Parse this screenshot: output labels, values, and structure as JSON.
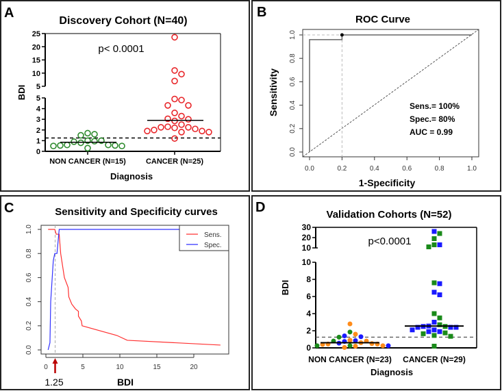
{
  "panels": {
    "A": {
      "letter": "A",
      "title": "Discovery Cohort (N=40)",
      "pvalue": "p< 0.0001",
      "ylabel": "BDI",
      "xlabel": "Diagnosis"
    },
    "B": {
      "letter": "B",
      "title": "ROC Curve",
      "ylabel": "Sensitivity",
      "xlabel": "1-Specificity",
      "stats": [
        "Sens.= 100%",
        "Spec.= 80%",
        "AUC  = 0.99"
      ]
    },
    "C": {
      "letter": "C",
      "title": "Sensitivity and Specificity curves",
      "xlabel": "BDI",
      "cutoff_label": "1.25"
    },
    "D": {
      "letter": "D",
      "title": "Validation Cohorts (N=52)",
      "pvalue": "p<0.0001",
      "ylabel": "BDI",
      "xlabel": "Diagnosis"
    }
  },
  "chart_data": [
    {
      "type": "scatter",
      "title": "Discovery Cohort (N=40)",
      "xlabel": "Diagnosis",
      "ylabel": "BDI",
      "categories": [
        "NON CANCER (N=15)",
        "CANCER (N=25)"
      ],
      "y_axis_broken": true,
      "yticks_lower": [
        0,
        1,
        2,
        3,
        4,
        5
      ],
      "yticks_upper": [
        5,
        10,
        15,
        20,
        25
      ],
      "cutoff": 1.25,
      "series": [
        {
          "category": "NON CANCER (N=15)",
          "color": "#2e8b2e",
          "marker": "open-circle",
          "median": 0.85,
          "values": [
            1.6,
            1.5,
            1.7,
            0.9,
            0.6,
            0.55,
            0.5,
            0.3,
            0.5,
            0.55,
            0.6,
            0.8,
            0.95,
            1.0,
            1.0
          ]
        },
        {
          "category": "CANCER (N=25)",
          "color": "#e8262a",
          "marker": "open-circle",
          "median": 2.9,
          "values": [
            23.6,
            11,
            9.6,
            7,
            4.8,
            4.9,
            4.3,
            4.3,
            3.6,
            3.3,
            3.0,
            3.05,
            2.85,
            2.5,
            2.25,
            2.25,
            2.1,
            2.2,
            2.3,
            1.8,
            1.9,
            1.9,
            2.0,
            1.8,
            1.2
          ]
        }
      ]
    },
    {
      "type": "line",
      "title": "ROC Curve",
      "xlabel": "1-Specificity",
      "ylabel": "Sensitivity",
      "xlim": [
        0,
        1
      ],
      "ylim": [
        0,
        1
      ],
      "xticks": [
        0.0,
        0.2,
        0.4,
        0.6,
        0.8,
        1.0
      ],
      "yticks": [
        0.0,
        0.2,
        0.4,
        0.6,
        0.8,
        1.0
      ],
      "roc": {
        "x": [
          0,
          0,
          0.2,
          0.2,
          1
        ],
        "y": [
          0,
          0.96,
          0.96,
          1,
          1
        ]
      },
      "optimal_point": [
        0.2,
        1.0
      ],
      "diagonal": true
    },
    {
      "type": "line",
      "title": "Sensitivity and Specificity curves",
      "xlabel": "BDI",
      "xticks": [
        0,
        5,
        10,
        15,
        20
      ],
      "yticks": [
        0.0,
        0.2,
        0.4,
        0.6,
        0.8,
        1.0
      ],
      "cutoff": 1.25,
      "legend": "top-right",
      "series": [
        {
          "name": "Sens.",
          "color": "#ff3030",
          "x": [
            0.3,
            1.2,
            1.4,
            1.8,
            2.0,
            2.3,
            2.5,
            3.0,
            3.1,
            3.5,
            4.0,
            4.4,
            4.4,
            4.8,
            4.9,
            9.6,
            11,
            23.6
          ],
          "y": [
            1,
            1,
            0.96,
            0.96,
            0.8,
            0.68,
            0.6,
            0.52,
            0.44,
            0.38,
            0.34,
            0.32,
            0.28,
            0.24,
            0.2,
            0.12,
            0.08,
            0.04
          ]
        },
        {
          "name": "Spec.",
          "color": "#3030ff",
          "x": [
            0.3,
            0.55,
            0.65,
            1.0,
            1.2,
            1.5,
            1.8,
            23.6
          ],
          "y": [
            0,
            0.06,
            0.4,
            0.74,
            0.8,
            0.8,
            1.0,
            1.0
          ]
        }
      ]
    },
    {
      "type": "scatter",
      "title": "Validation Cohorts (N=52)",
      "xlabel": "Diagnosis",
      "ylabel": "BDI",
      "categories": [
        "NON CANCER (N=23)",
        "CANCER (N=29)"
      ],
      "y_axis_broken": true,
      "yticks_lower": [
        0,
        2,
        4,
        6,
        8,
        10
      ],
      "yticks_upper": [
        10,
        20,
        30
      ],
      "cutoff": 1.25,
      "colors": {
        "g": "#1a8a1a",
        "b": "#1a1aff",
        "o": "#ff8c1a"
      },
      "series": [
        {
          "category": "NON CANCER (N=23)",
          "marker": "circle",
          "median": 0.6,
          "values": [
            0.55,
            0.45,
            0.4,
            1.25,
            0.25,
            0.85,
            0.25,
            0.8,
            1.85,
            2.8,
            0.05,
            1.4,
            0.75,
            0.2,
            0.8,
            0.25,
            1.6,
            0.9,
            0.25,
            0.45,
            1.3,
            0.5,
            0.6
          ],
          "colors": [
            "b",
            "o",
            "o",
            "g",
            "g",
            "b",
            "o",
            "o",
            "g",
            "o",
            "o",
            "b",
            "b",
            "o",
            "g",
            "g",
            "o",
            "o",
            "b",
            "o",
            "b",
            "o",
            "o"
          ]
        },
        {
          "category": "CANCER (N=29)",
          "marker": "square",
          "median": 2.55,
          "values": [
            26,
            24,
            19,
            13,
            11,
            13,
            7.6,
            7.5,
            6.5,
            6.2,
            4.0,
            3.5,
            3.0,
            2.7,
            2.5,
            2.4,
            2.4,
            2.1,
            2.1,
            2.4,
            2.5,
            2.55,
            1.9,
            1.75,
            1.45,
            1.35,
            1.65,
            1.9,
            0.2
          ],
          "colors": [
            "b",
            "g",
            "g",
            "g",
            "g",
            "b",
            "g",
            "b",
            "b",
            "b",
            "g",
            "g",
            "b",
            "g",
            "g",
            "b",
            "b",
            "b",
            "b",
            "b",
            "b",
            "b",
            "b",
            "g",
            "g",
            "g",
            "g",
            "b",
            "g"
          ]
        }
      ]
    }
  ]
}
